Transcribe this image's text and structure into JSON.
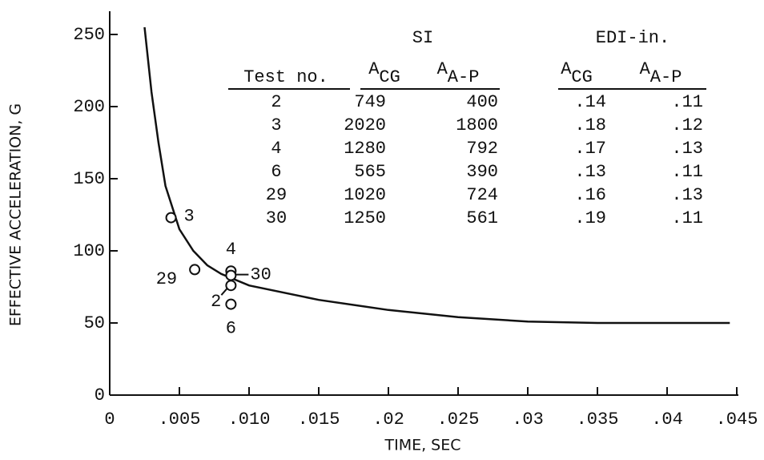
{
  "chart_data": {
    "type": "line",
    "xlabel": "TIME, SEC",
    "ylabel": "EFFECTIVE ACCELERATION, G",
    "xlim": [
      0,
      0.045
    ],
    "xticks": [
      0,
      {
        "value": 0.005,
        "label": ".005"
      },
      {
        "value": 0.01,
        "label": ".010"
      },
      {
        "value": 0.015,
        "label": ".015"
      },
      {
        "value": 0.02,
        "label": ".02"
      },
      {
        "value": 0.025,
        "label": ".025"
      },
      {
        "value": 0.03,
        "label": ".03"
      },
      {
        "value": 0.035,
        "label": ".035"
      },
      {
        "value": 0.04,
        "label": ".04"
      },
      {
        "value": 0.045,
        "label": ".045"
      }
    ],
    "ylim": [
      0,
      250
    ],
    "yticks": [
      0,
      50,
      100,
      150,
      200,
      250
    ],
    "series": [
      {
        "color": "#111111",
        "x": [
          0.0025,
          0.003,
          0.0035,
          0.004,
          0.005,
          0.006,
          0.007,
          0.008,
          0.01,
          0.015,
          0.02,
          0.025,
          0.03,
          0.035,
          0.04,
          0.0445
        ],
        "values": [
          255,
          210,
          175,
          145,
          115,
          100,
          90,
          84,
          76,
          66,
          59,
          54,
          51,
          50,
          50,
          50
        ]
      },
      {
        "type": "scatter",
        "color": "#111111",
        "x": [
          0.0044,
          0.0061,
          0.0087,
          0.0087,
          0.0087,
          0.0087
        ],
        "values": [
          123,
          87,
          86,
          83,
          76,
          63
        ],
        "labels": [
          "3",
          "29",
          "4",
          "30",
          "2",
          "6"
        ]
      }
    ],
    "table": {
      "group_headers": [
        "SI",
        "EDI-in."
      ],
      "columns": [
        "Test no.",
        {
          "symbol": "A",
          "subscript": "CG"
        },
        {
          "symbol": "A",
          "subscript": "A-P"
        },
        {
          "symbol": "A",
          "subscript": "CG"
        },
        {
          "symbol": "A",
          "subscript": "A-P"
        }
      ],
      "rows": [
        [
          "2",
          "749",
          "400",
          ".14",
          ".11"
        ],
        [
          "3",
          "2020",
          "1800",
          ".18",
          ".12"
        ],
        [
          "4",
          "1280",
          "792",
          ".17",
          ".13"
        ],
        [
          "6",
          "565",
          "390",
          ".13",
          ".11"
        ],
        [
          "29",
          "1020",
          "724",
          ".16",
          ".13"
        ],
        [
          "30",
          "1250",
          "561",
          ".19",
          ".11"
        ]
      ]
    }
  }
}
